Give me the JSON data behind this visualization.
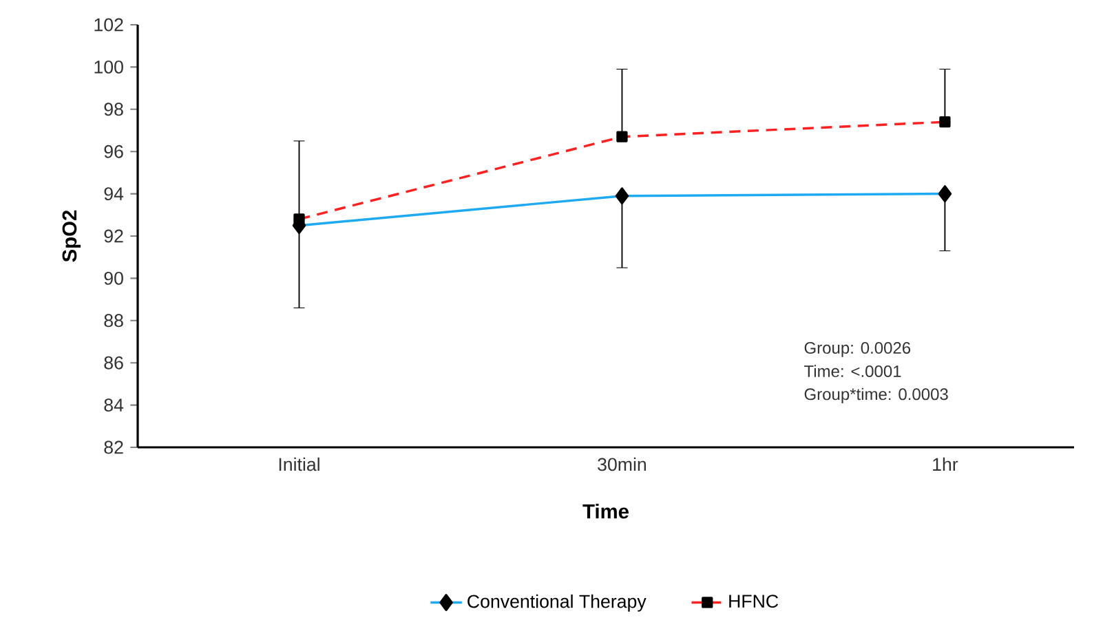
{
  "chart_data": {
    "type": "line",
    "xlabel": "Time",
    "ylabel": "SpO2",
    "categories": [
      "Initial",
      "30min",
      "1hr"
    ],
    "series": [
      {
        "name": "Conventional Therapy",
        "color": "#1eaaf0",
        "marker": "diamond",
        "line_style": "solid",
        "values": [
          92.5,
          93.9,
          94.0
        ],
        "errors": [
          [
            88.6,
            92.5
          ],
          [
            90.5,
            93.9
          ],
          [
            91.3,
            94.0
          ]
        ]
      },
      {
        "name": "HFNC",
        "color": "#ff2020",
        "marker": "square",
        "line_style": "dashed",
        "values": [
          92.8,
          96.7,
          97.4
        ],
        "errors": [
          [
            92.8,
            96.5
          ],
          [
            96.7,
            99.9
          ],
          [
            97.4,
            99.9
          ]
        ]
      }
    ],
    "ylim": [
      82,
      102
    ],
    "yticks": [
      82,
      84,
      86,
      88,
      90,
      92,
      94,
      96,
      98,
      100,
      102
    ],
    "grid": false,
    "legend": "bottom",
    "annotations": [
      "Group: 0.0026",
      "Time: <.0001",
      "Group*time: 0.0003"
    ]
  }
}
